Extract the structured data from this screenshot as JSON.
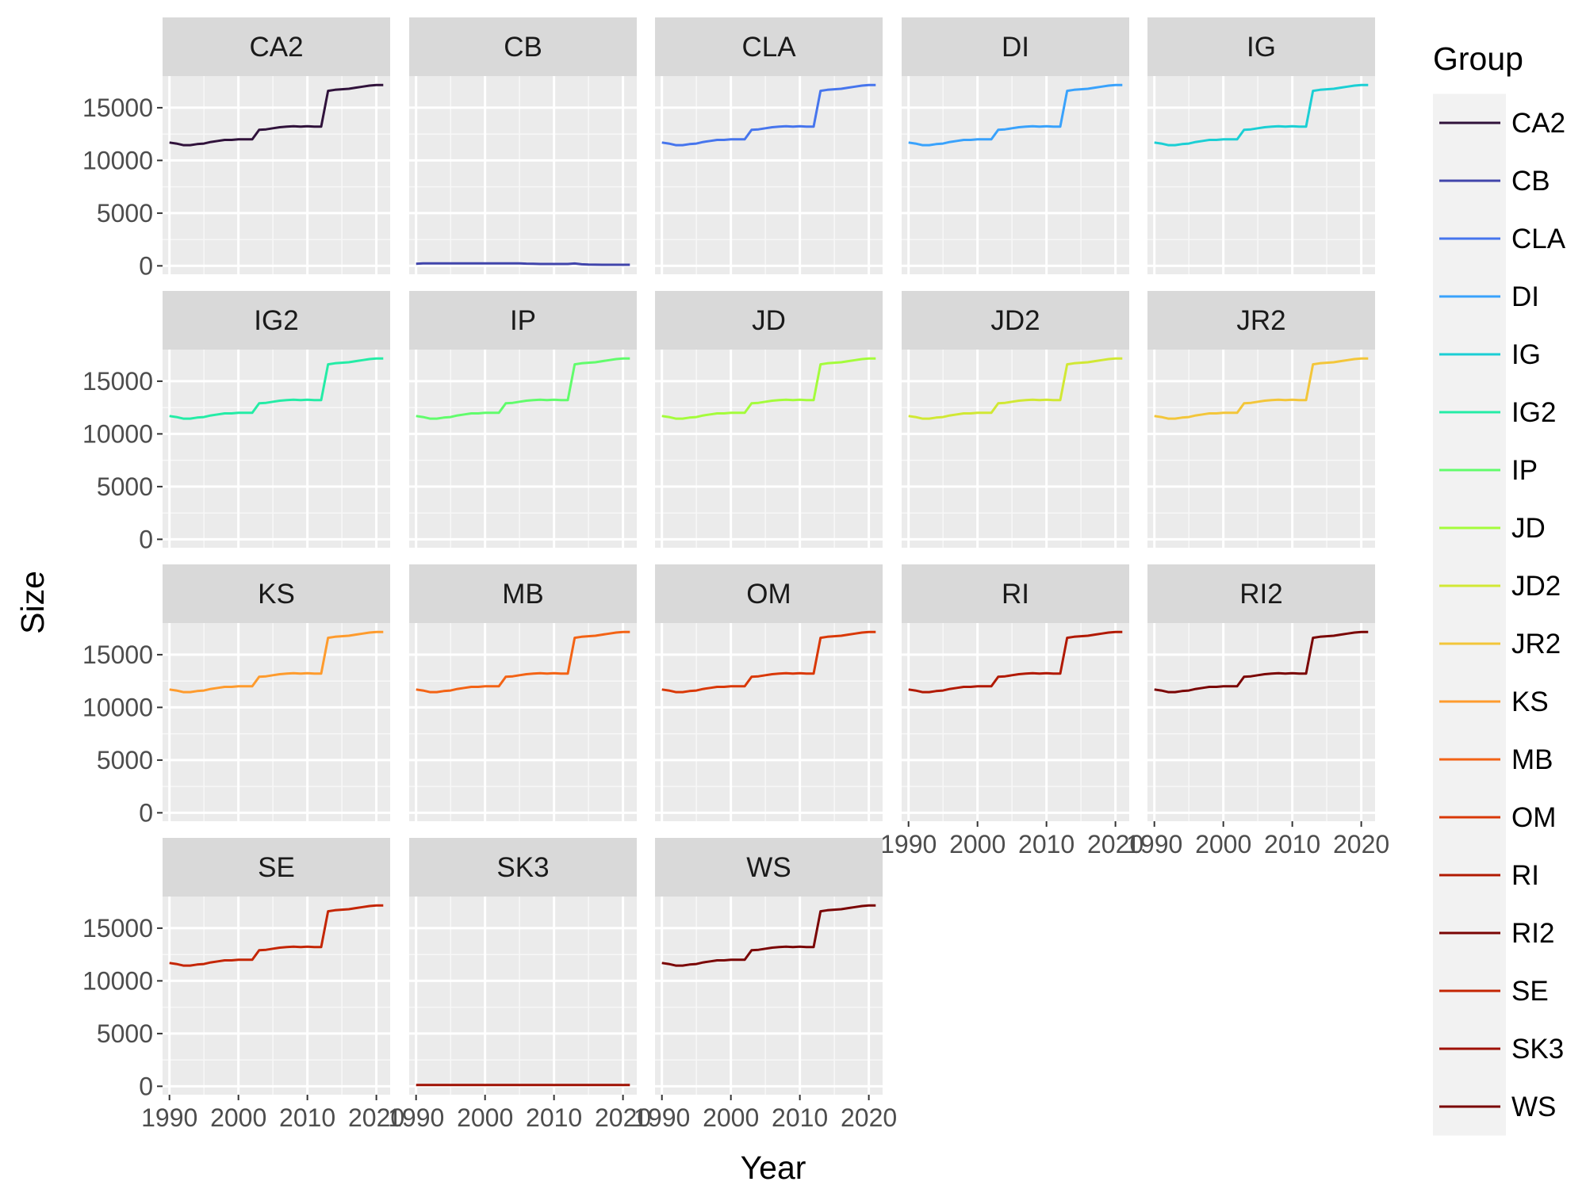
{
  "chart_data": {
    "type": "line",
    "xlabel": "Year",
    "ylabel": "Size",
    "xlim": [
      1989,
      2022
    ],
    "ylim": [
      -800,
      18000
    ],
    "x_ticks": [
      1990,
      2000,
      2010,
      2020
    ],
    "y_ticks": [
      0,
      5000,
      10000,
      15000
    ],
    "grid": true,
    "legend": {
      "title": "Group",
      "placement": "right"
    },
    "x": [
      1990,
      1991,
      1992,
      1993,
      1994,
      1995,
      1996,
      1997,
      1998,
      1999,
      2000,
      2001,
      2002,
      2003,
      2004,
      2005,
      2006,
      2007,
      2008,
      2009,
      2010,
      2011,
      2012,
      2013,
      2014,
      2015,
      2016,
      2017,
      2018,
      2019,
      2020,
      2021
    ],
    "series": [
      {
        "name": "CA2",
        "color": "#30123b",
        "values": [
          11700,
          11600,
          11450,
          11450,
          11550,
          11600,
          11750,
          11850,
          11950,
          11950,
          12000,
          12000,
          12000,
          12900,
          12950,
          13050,
          13150,
          13200,
          13250,
          13200,
          13250,
          13200,
          13200,
          16600,
          16700,
          16750,
          16800,
          16900,
          17000,
          17100,
          17150,
          17150
        ]
      },
      {
        "name": "CB",
        "color": "#4145ab",
        "values": [
          200,
          230,
          230,
          230,
          230,
          230,
          230,
          230,
          230,
          230,
          230,
          230,
          230,
          230,
          230,
          230,
          210,
          200,
          180,
          180,
          180,
          180,
          180,
          220,
          150,
          120,
          110,
          100,
          100,
          100,
          100,
          100
        ]
      },
      {
        "name": "CLA",
        "color": "#4675ed",
        "values": [
          11700,
          11600,
          11450,
          11450,
          11550,
          11600,
          11750,
          11850,
          11950,
          11950,
          12000,
          12000,
          12000,
          12900,
          12950,
          13050,
          13150,
          13200,
          13250,
          13200,
          13250,
          13200,
          13200,
          16600,
          16700,
          16750,
          16800,
          16900,
          17000,
          17100,
          17150,
          17150
        ]
      },
      {
        "name": "DI",
        "color": "#39a2fc",
        "values": [
          11700,
          11600,
          11450,
          11450,
          11550,
          11600,
          11750,
          11850,
          11950,
          11950,
          12000,
          12000,
          12000,
          12900,
          12950,
          13050,
          13150,
          13200,
          13250,
          13200,
          13250,
          13200,
          13200,
          16600,
          16700,
          16750,
          16800,
          16900,
          17000,
          17100,
          17150,
          17150
        ]
      },
      {
        "name": "IG",
        "color": "#1bcfd4",
        "values": [
          11700,
          11600,
          11450,
          11450,
          11550,
          11600,
          11750,
          11850,
          11950,
          11950,
          12000,
          12000,
          12000,
          12900,
          12950,
          13050,
          13150,
          13200,
          13250,
          13200,
          13250,
          13200,
          13200,
          16600,
          16700,
          16750,
          16800,
          16900,
          17000,
          17100,
          17150,
          17150
        ]
      },
      {
        "name": "IG2",
        "color": "#24eca6",
        "values": [
          11700,
          11600,
          11450,
          11450,
          11550,
          11600,
          11750,
          11850,
          11950,
          11950,
          12000,
          12000,
          12000,
          12900,
          12950,
          13050,
          13150,
          13200,
          13250,
          13200,
          13250,
          13200,
          13200,
          16600,
          16700,
          16750,
          16800,
          16900,
          17000,
          17100,
          17150,
          17150
        ]
      },
      {
        "name": "IP",
        "color": "#61fc6c",
        "values": [
          11700,
          11600,
          11450,
          11450,
          11550,
          11600,
          11750,
          11850,
          11950,
          11950,
          12000,
          12000,
          12000,
          12900,
          12950,
          13050,
          13150,
          13200,
          13250,
          13200,
          13250,
          13200,
          13200,
          16600,
          16700,
          16750,
          16800,
          16900,
          17000,
          17100,
          17150,
          17150
        ]
      },
      {
        "name": "JD",
        "color": "#a4fc3b",
        "values": [
          11700,
          11600,
          11450,
          11450,
          11550,
          11600,
          11750,
          11850,
          11950,
          11950,
          12000,
          12000,
          12000,
          12900,
          12950,
          13050,
          13150,
          13200,
          13250,
          13200,
          13250,
          13200,
          13200,
          16600,
          16700,
          16750,
          16800,
          16900,
          17000,
          17100,
          17150,
          17150
        ]
      },
      {
        "name": "JD2",
        "color": "#d1e834",
        "values": [
          11700,
          11600,
          11450,
          11450,
          11550,
          11600,
          11750,
          11850,
          11950,
          11950,
          12000,
          12000,
          12000,
          12900,
          12950,
          13050,
          13150,
          13200,
          13250,
          13200,
          13250,
          13200,
          13200,
          16600,
          16700,
          16750,
          16800,
          16900,
          17000,
          17100,
          17150,
          17150
        ]
      },
      {
        "name": "JR2",
        "color": "#f3c63a",
        "values": [
          11700,
          11600,
          11450,
          11450,
          11550,
          11600,
          11750,
          11850,
          11950,
          11950,
          12000,
          12000,
          12000,
          12900,
          12950,
          13050,
          13150,
          13200,
          13250,
          13200,
          13250,
          13200,
          13200,
          16600,
          16700,
          16750,
          16800,
          16900,
          17000,
          17100,
          17150,
          17150
        ]
      },
      {
        "name": "KS",
        "color": "#fe9b2d",
        "values": [
          11700,
          11600,
          11450,
          11450,
          11550,
          11600,
          11750,
          11850,
          11950,
          11950,
          12000,
          12000,
          12000,
          12900,
          12950,
          13050,
          13150,
          13200,
          13250,
          13200,
          13250,
          13200,
          13200,
          16600,
          16700,
          16750,
          16800,
          16900,
          17000,
          17100,
          17150,
          17150
        ]
      },
      {
        "name": "MB",
        "color": "#f36315",
        "values": [
          11700,
          11600,
          11450,
          11450,
          11550,
          11600,
          11750,
          11850,
          11950,
          11950,
          12000,
          12000,
          12000,
          12900,
          12950,
          13050,
          13150,
          13200,
          13250,
          13200,
          13250,
          13200,
          13200,
          16600,
          16700,
          16750,
          16800,
          16900,
          17000,
          17100,
          17150,
          17150
        ]
      },
      {
        "name": "OM",
        "color": "#d93806",
        "values": [
          11700,
          11600,
          11450,
          11450,
          11550,
          11600,
          11750,
          11850,
          11950,
          11950,
          12000,
          12000,
          12000,
          12900,
          12950,
          13050,
          13150,
          13200,
          13250,
          13200,
          13250,
          13200,
          13200,
          16600,
          16700,
          16750,
          16800,
          16900,
          17000,
          17100,
          17150,
          17150
        ]
      },
      {
        "name": "RI",
        "color": "#b11901",
        "values": [
          11700,
          11600,
          11450,
          11450,
          11550,
          11600,
          11750,
          11850,
          11950,
          11950,
          12000,
          12000,
          12000,
          12900,
          12950,
          13050,
          13150,
          13200,
          13250,
          13200,
          13250,
          13200,
          13200,
          16600,
          16700,
          16750,
          16800,
          16900,
          17000,
          17100,
          17150,
          17150
        ]
      },
      {
        "name": "RI2",
        "color": "#7a0403",
        "values": [
          11700,
          11600,
          11450,
          11450,
          11550,
          11600,
          11750,
          11850,
          11950,
          11950,
          12000,
          12000,
          12000,
          12900,
          12950,
          13050,
          13150,
          13200,
          13250,
          13200,
          13250,
          13200,
          13200,
          16600,
          16700,
          16750,
          16800,
          16900,
          17000,
          17100,
          17150,
          17150
        ]
      },
      {
        "name": "SE",
        "color": "#c42503",
        "values": [
          11700,
          11600,
          11450,
          11450,
          11550,
          11600,
          11750,
          11850,
          11950,
          11950,
          12000,
          12000,
          12000,
          12900,
          12950,
          13050,
          13150,
          13200,
          13250,
          13200,
          13250,
          13200,
          13200,
          16600,
          16700,
          16750,
          16800,
          16900,
          17000,
          17100,
          17150,
          17150
        ]
      },
      {
        "name": "SK3",
        "color": "#9f1002",
        "values": [
          120,
          120,
          120,
          120,
          120,
          120,
          120,
          120,
          120,
          120,
          120,
          120,
          120,
          120,
          120,
          120,
          120,
          120,
          120,
          120,
          120,
          120,
          120,
          120,
          120,
          120,
          120,
          120,
          120,
          120,
          120,
          120
        ]
      },
      {
        "name": "WS",
        "color": "#7a0403",
        "values": [
          11700,
          11600,
          11450,
          11450,
          11550,
          11600,
          11750,
          11850,
          11950,
          11950,
          12000,
          12000,
          12000,
          12900,
          12950,
          13050,
          13150,
          13200,
          13250,
          13200,
          13250,
          13200,
          13200,
          16600,
          16700,
          16750,
          16800,
          16900,
          17000,
          17100,
          17150,
          17150
        ]
      }
    ],
    "panels": [
      {
        "label": "CA2",
        "series": "CA2",
        "row": 0,
        "col": 0,
        "x_axis": false,
        "y_axis": true
      },
      {
        "label": "CB",
        "series": "CB",
        "row": 0,
        "col": 1,
        "x_axis": false,
        "y_axis": false
      },
      {
        "label": "CLA",
        "series": "CLA",
        "row": 0,
        "col": 2,
        "x_axis": false,
        "y_axis": false
      },
      {
        "label": "DI",
        "series": "DI",
        "row": 0,
        "col": 3,
        "x_axis": false,
        "y_axis": false
      },
      {
        "label": "IG",
        "series": "IG",
        "row": 0,
        "col": 4,
        "x_axis": false,
        "y_axis": false
      },
      {
        "label": "IG2",
        "series": "IG2",
        "row": 1,
        "col": 0,
        "x_axis": false,
        "y_axis": true
      },
      {
        "label": "IP",
        "series": "IP",
        "row": 1,
        "col": 1,
        "x_axis": false,
        "y_axis": false
      },
      {
        "label": "JD",
        "series": "JD",
        "row": 1,
        "col": 2,
        "x_axis": false,
        "y_axis": false
      },
      {
        "label": "JD2",
        "series": "JD2",
        "row": 1,
        "col": 3,
        "x_axis": false,
        "y_axis": false
      },
      {
        "label": "JR2",
        "series": "JR2",
        "row": 1,
        "col": 4,
        "x_axis": false,
        "y_axis": false
      },
      {
        "label": "KS",
        "series": "KS",
        "row": 2,
        "col": 0,
        "x_axis": false,
        "y_axis": true
      },
      {
        "label": "MB",
        "series": "MB",
        "row": 2,
        "col": 1,
        "x_axis": false,
        "y_axis": false
      },
      {
        "label": "OM",
        "series": "OM",
        "row": 2,
        "col": 2,
        "x_axis": false,
        "y_axis": false
      },
      {
        "label": "RI",
        "series": "RI",
        "row": 2,
        "col": 3,
        "x_axis": true,
        "y_axis": false
      },
      {
        "label": "RI2",
        "series": "RI2",
        "row": 2,
        "col": 4,
        "x_axis": true,
        "y_axis": false
      },
      {
        "label": "SE",
        "series": "SE",
        "row": 3,
        "col": 0,
        "x_axis": true,
        "y_axis": true
      },
      {
        "label": "SK3",
        "series": "SK3",
        "row": 3,
        "col": 1,
        "x_axis": true,
        "y_axis": false
      },
      {
        "label": "WS",
        "series": "WS",
        "row": 3,
        "col": 2,
        "x_axis": true,
        "y_axis": false
      }
    ]
  }
}
